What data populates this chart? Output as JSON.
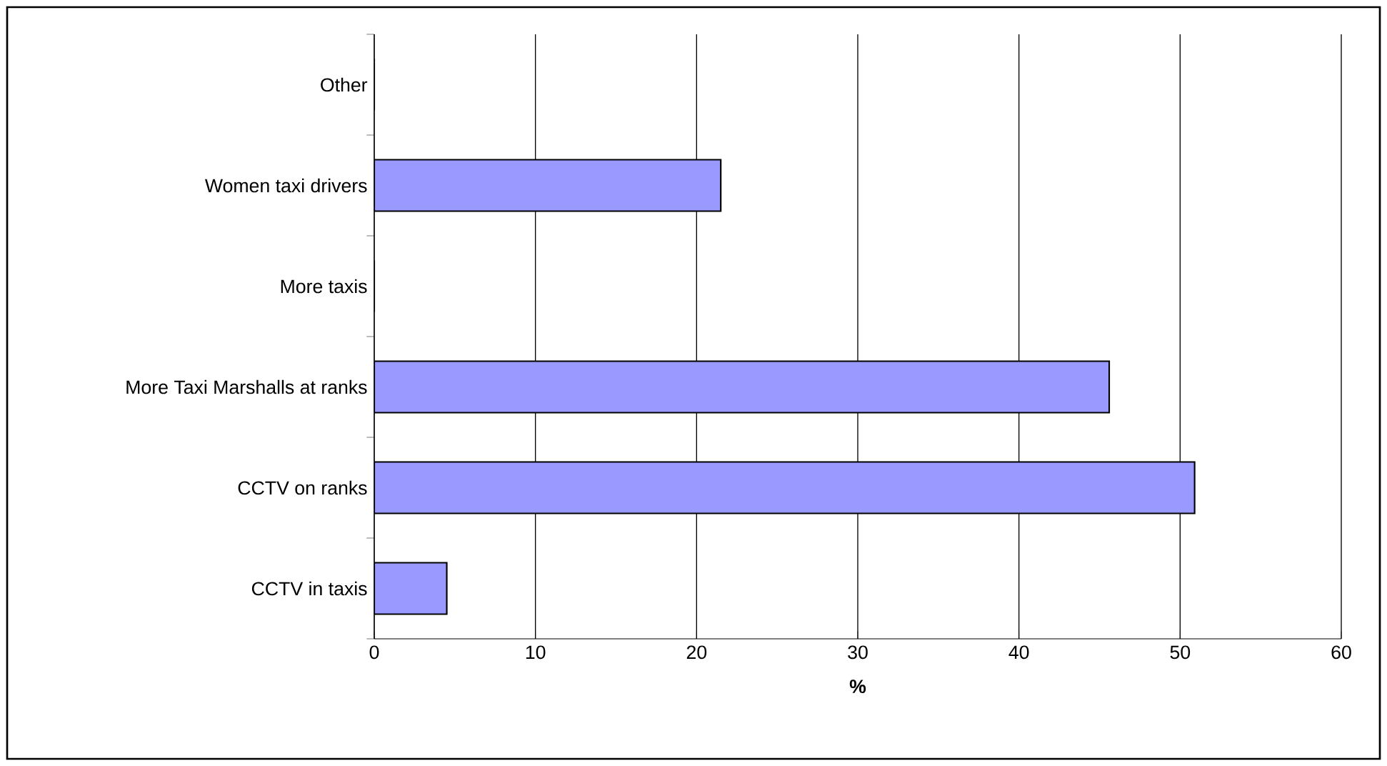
{
  "chart_data": {
    "type": "bar",
    "orientation": "horizontal",
    "xlabel": "%",
    "categories": [
      "Other",
      "Women taxi drivers",
      "More taxis",
      "More Taxi Marshalls at ranks",
      "CCTV on ranks",
      "CCTV in taxis"
    ],
    "values": [
      0,
      21.5,
      0,
      45.6,
      50.9,
      4.5
    ],
    "color": "#9999ff",
    "xlim": [
      0,
      60
    ],
    "xticks": [
      0,
      10,
      20,
      30,
      40,
      50,
      60
    ],
    "grid": "x"
  }
}
